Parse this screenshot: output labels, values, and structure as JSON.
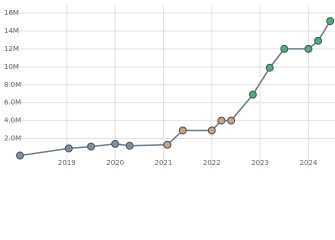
{
  "chart_data": {
    "type": "line",
    "x": [
      2018.03,
      2019.04,
      2019.5,
      2020.0,
      2020.3,
      2021.08,
      2021.4,
      2022.0,
      2022.2,
      2022.4,
      2022.85,
      2023.2,
      2023.5,
      2024.0,
      2024.2,
      2024.45
    ],
    "series": [
      {
        "color": "#6d7b8a",
        "values": [
          100000,
          900000,
          1100000,
          1400000,
          1200000,
          1300000,
          2900000,
          2900000,
          4000000,
          4000000,
          6900000,
          9900000,
          12000000,
          12000000,
          12900000,
          15100000
        ],
        "marker_colors": [
          "#7f8fa3",
          "#7f8fa3",
          "#7f8fa3",
          "#7f8fa3",
          "#7f8fa3",
          "#c9a27e",
          "#c9a27e",
          "#c9a27e",
          "#c9a27e",
          "#c9a27e",
          "#4caf78",
          "#4caf78",
          "#4caf78",
          "#4caf78",
          "#4caf78",
          "#4caf78"
        ]
      }
    ],
    "xlim": [
      2017.72,
      2024.55
    ],
    "xticks": [
      2019,
      2020,
      2021,
      2022,
      2023,
      2024
    ],
    "ylim": [
      -1400000,
      16900000
    ],
    "yticks": [
      {
        "value": 2000000,
        "label": "2.0M"
      },
      {
        "value": 4000000,
        "label": "4.0M"
      },
      {
        "value": 6000000,
        "label": "6.0M"
      },
      {
        "value": 8000000,
        "label": "8.0M"
      },
      {
        "value": 10000000,
        "label": "10M"
      },
      {
        "value": 12000000,
        "label": "12M"
      },
      {
        "value": 14000000,
        "label": "14M"
      },
      {
        "value": 16000000,
        "label": "16M"
      }
    ],
    "grid": true
  }
}
